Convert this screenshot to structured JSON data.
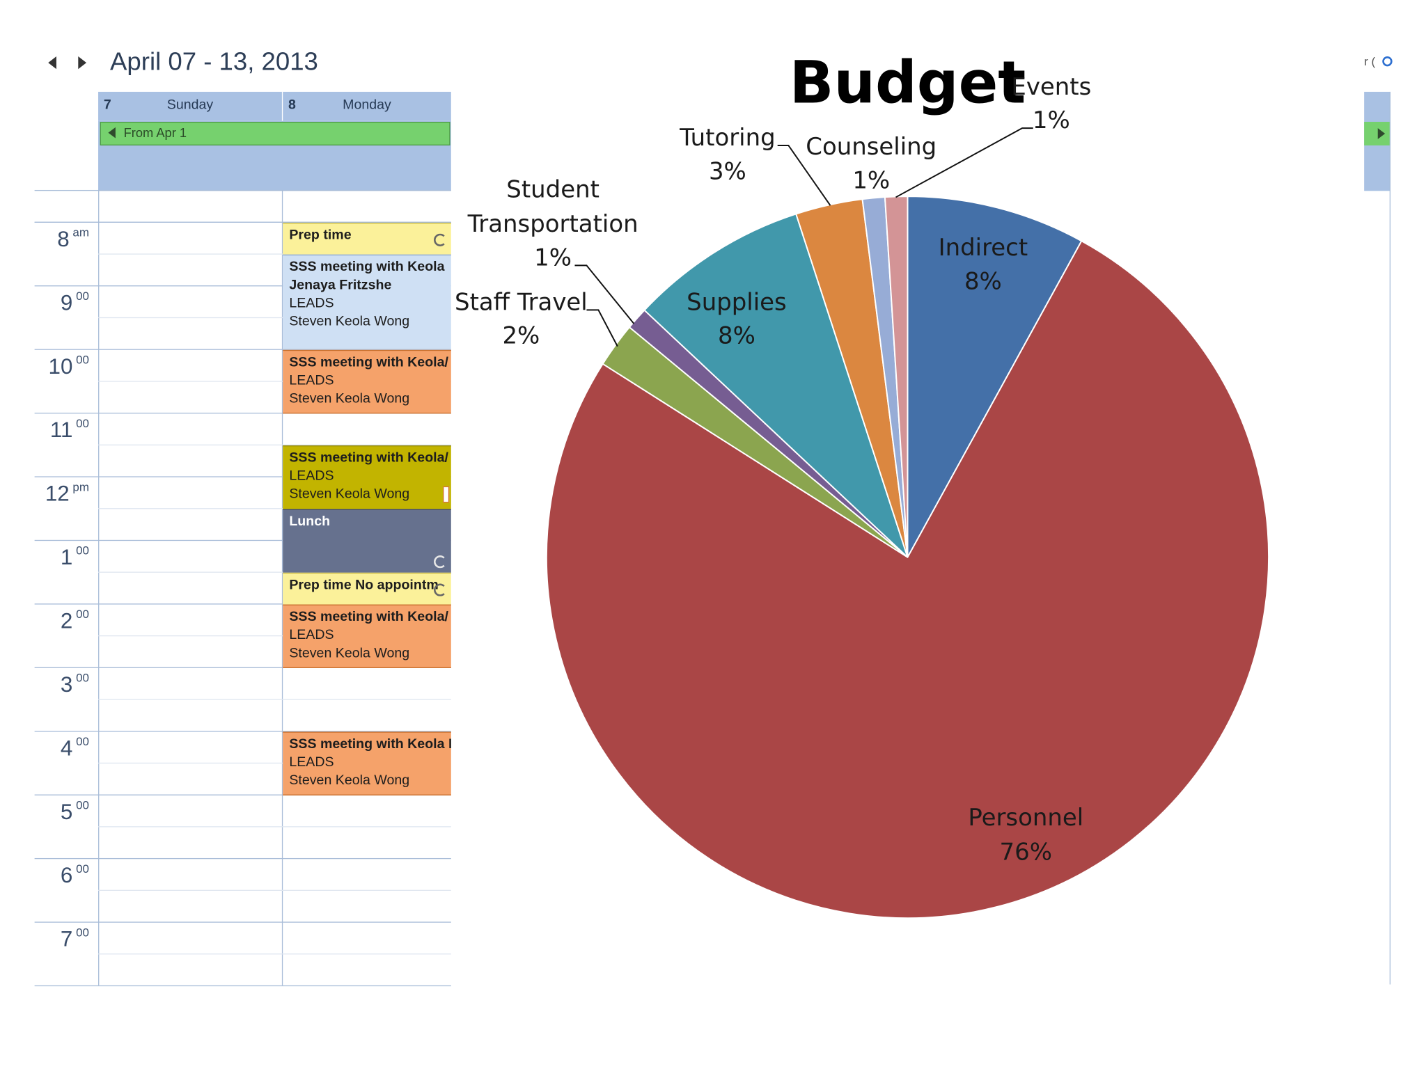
{
  "calendar": {
    "date_range": "April 07 - 13, 2013",
    "days": [
      {
        "num": "7",
        "name": "Sunday"
      },
      {
        "num": "8",
        "name": "Monday"
      }
    ],
    "recurring_banner": "From Apr 1",
    "hours": [
      {
        "h": "8",
        "m": "am"
      },
      {
        "h": "9",
        "m": "00"
      },
      {
        "h": "10",
        "m": "00"
      },
      {
        "h": "11",
        "m": "00"
      },
      {
        "h": "12",
        "m": "pm"
      },
      {
        "h": "1",
        "m": "00"
      },
      {
        "h": "2",
        "m": "00"
      },
      {
        "h": "3",
        "m": "00"
      },
      {
        "h": "4",
        "m": "00"
      },
      {
        "h": "5",
        "m": "00"
      },
      {
        "h": "6",
        "m": "00"
      },
      {
        "h": "7",
        "m": "00"
      }
    ],
    "events": [
      {
        "title": "Prep time",
        "lines": []
      },
      {
        "title": "SSS meeting with Keola",
        "lines": [
          "Jenaya Fritzshe",
          "LEADS",
          "Steven Keola Wong"
        ]
      },
      {
        "title": "SSS meeting with Keola/ B",
        "lines": [
          "LEADS",
          "Steven Keola Wong"
        ]
      },
      {
        "title": "SSS meeting with Keola/ Tr",
        "lines": [
          "LEADS",
          "Steven Keola Wong"
        ]
      },
      {
        "title": "Lunch",
        "lines": []
      },
      {
        "title": "Prep time No appointm",
        "lines": []
      },
      {
        "title": "SSS meeting with Keola/ N",
        "lines": [
          "LEADS",
          "Steven Keola Wong"
        ]
      },
      {
        "title": "SSS meeting with Keola Ky",
        "lines": [
          "LEADS",
          "Steven Keola Wong"
        ]
      }
    ],
    "right_edge_text": "r (",
    "colors": {
      "header": "#a9c1e3",
      "recurring": "#76d16e",
      "prep": "#fbf19a",
      "tentative": "#cfe0f4",
      "meeting": "#f5a26a",
      "meeting_alt": "#c2b400",
      "lunch": "#66718e"
    }
  },
  "chart_data": {
    "type": "pie",
    "title": "Budget",
    "slices": [
      {
        "label": "Indirect",
        "value": 8,
        "display": "8%",
        "color": "#4470a8"
      },
      {
        "label": "Personnel",
        "value": 76,
        "display": "76%",
        "color": "#aa4646"
      },
      {
        "label": "Staff Travel",
        "value": 2,
        "display": "2%",
        "color": "#8ba54f"
      },
      {
        "label": "Student Transportation",
        "value": 1,
        "display": "1%",
        "color": "#765d92"
      },
      {
        "label": "Supplies",
        "value": 8,
        "display": "8%",
        "color": "#4198ab"
      },
      {
        "label": "Tutoring",
        "value": 3,
        "display": "3%",
        "color": "#db8740"
      },
      {
        "label": "Counseling",
        "value": 1,
        "display": "1%",
        "color": "#97acd6"
      },
      {
        "label": "Events",
        "value": 1,
        "display": "1%",
        "color": "#d39496"
      }
    ]
  }
}
